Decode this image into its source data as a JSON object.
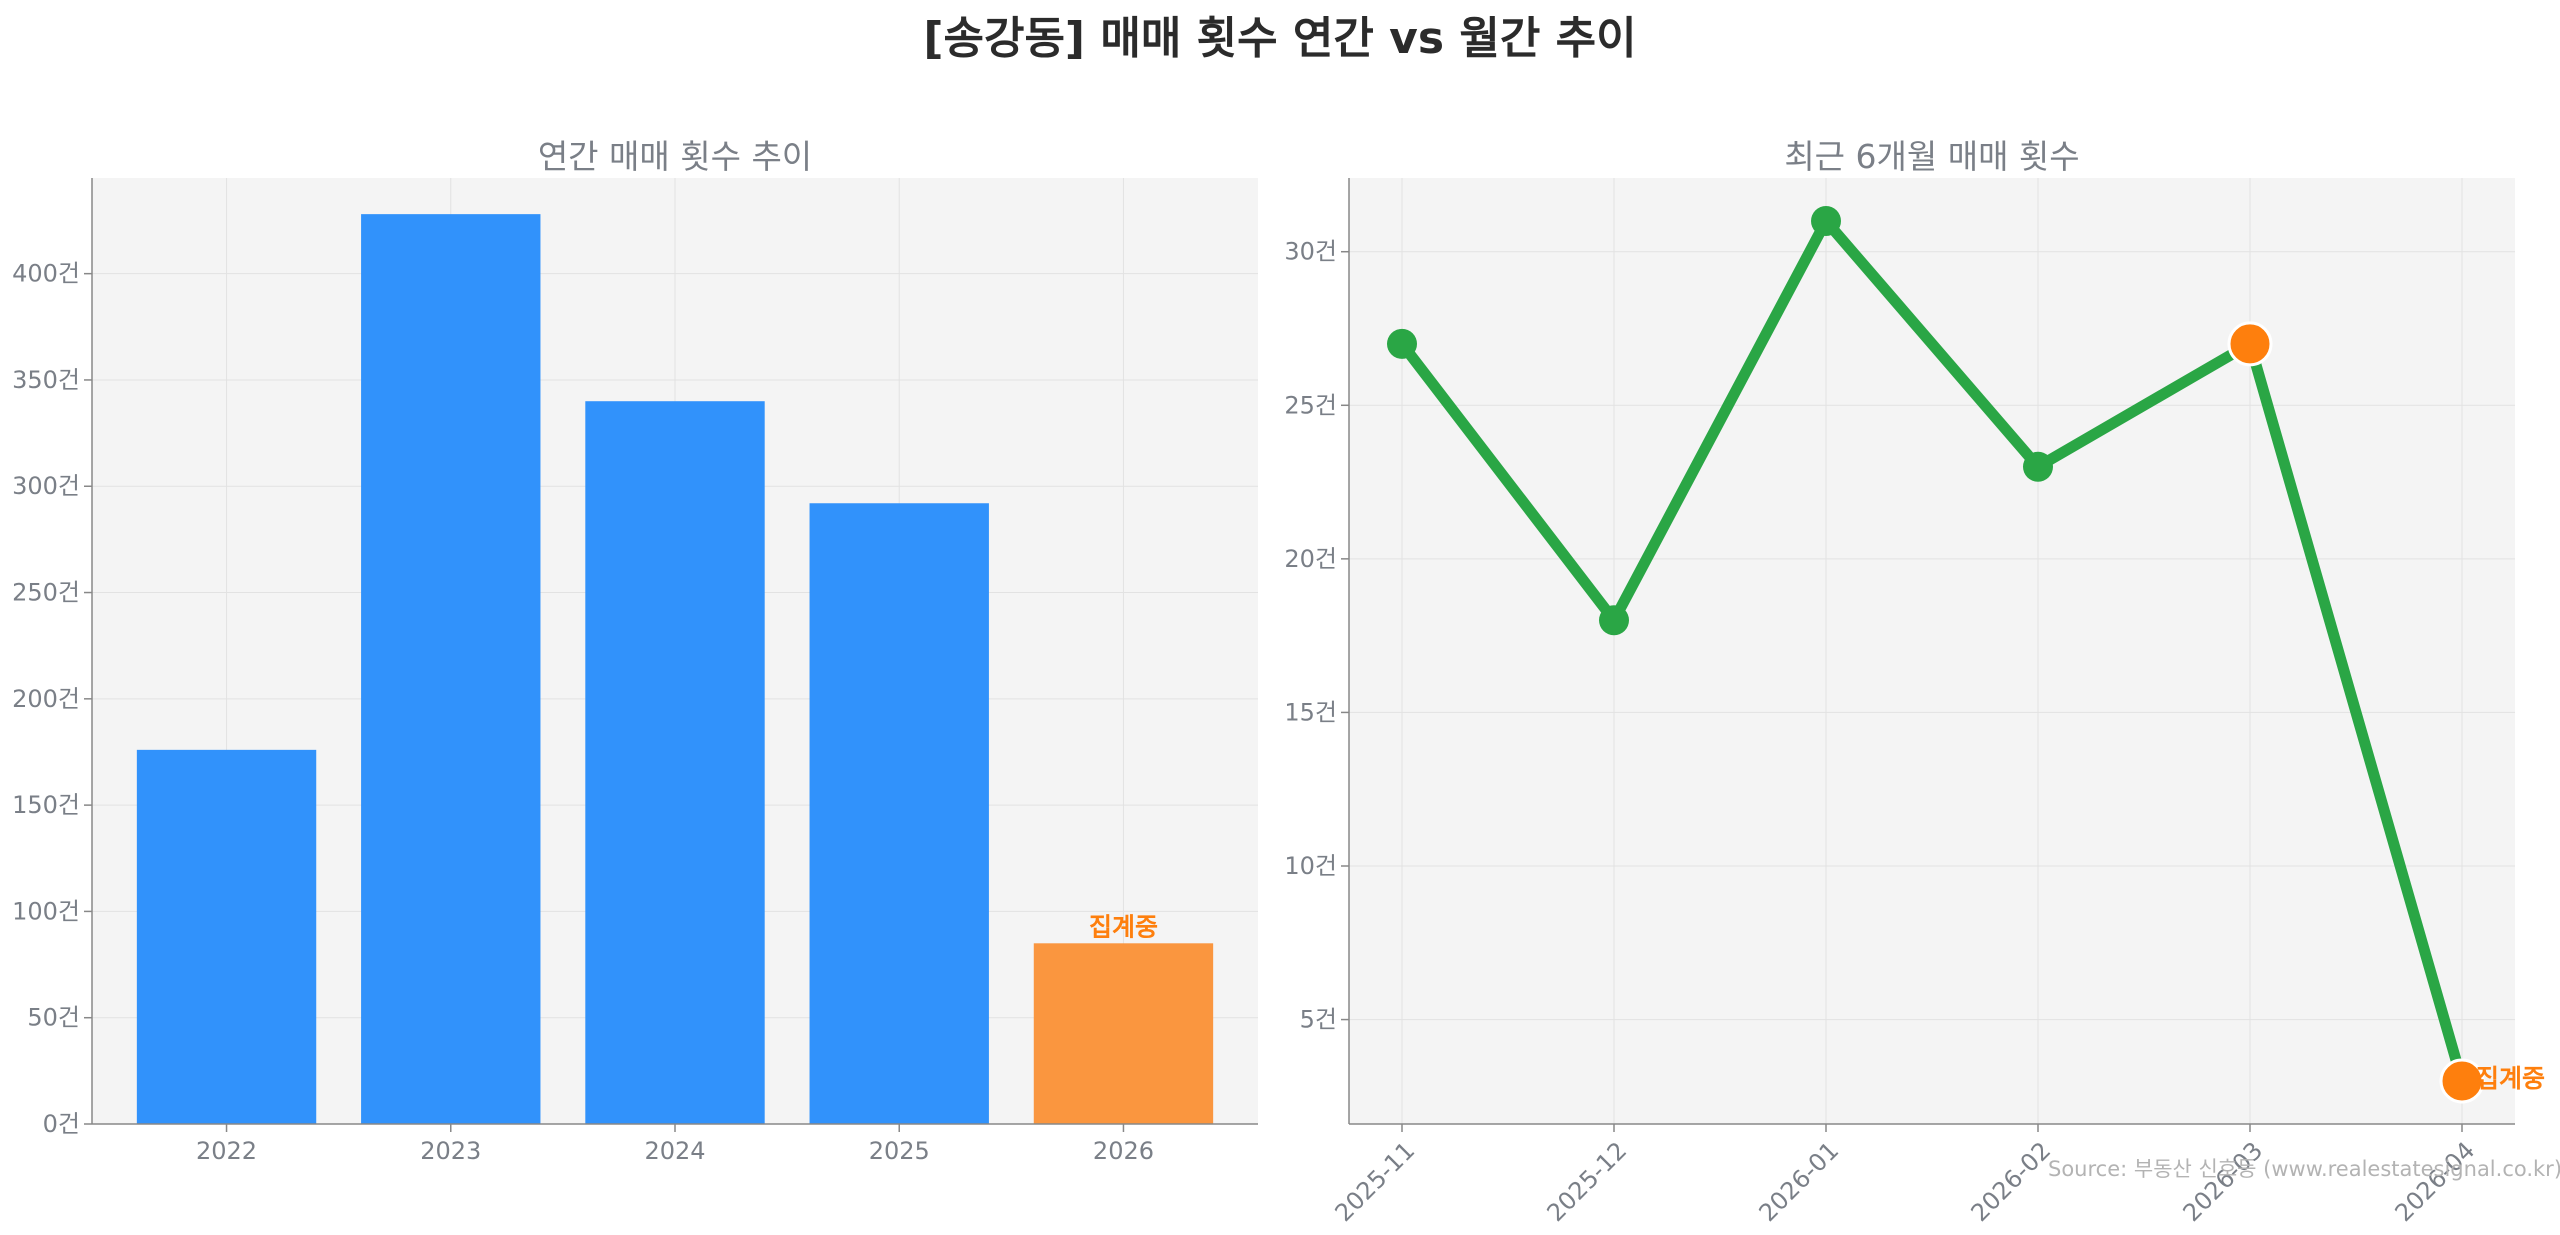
{
  "title": "[송강동] 매매 횟수 연간 vs 월간 추이",
  "source": "Source: 부동산 신호등 (www.realestatesignal.co.kr)",
  "colors": {
    "bar": "#3192fb",
    "highlight_bar": "#fa963f",
    "line": "#2aa645",
    "highlight_point": "#fe7f0d",
    "note_text": "#fe7f0d",
    "panel_bg": "#f4f4f4"
  },
  "chart_data": [
    {
      "type": "bar",
      "title": "연간 매매 횟수 추이",
      "categories": [
        "2022",
        "2023",
        "2024",
        "2025",
        "2026"
      ],
      "values": [
        176,
        428,
        340,
        292,
        85
      ],
      "highlight_index": 4,
      "annotation": "집계중",
      "ylim": [
        0,
        445
      ],
      "yticks": [
        0,
        50,
        100,
        150,
        200,
        250,
        300,
        350,
        400
      ],
      "ytick_labels": [
        "0건",
        "50건",
        "100건",
        "150건",
        "200건",
        "250건",
        "300건",
        "350건",
        "400건"
      ],
      "grid": true
    },
    {
      "type": "line",
      "title": "최근 6개월 매매 횟수",
      "categories": [
        "2025-11",
        "2025-12",
        "2026-01",
        "2026-02",
        "2026-03",
        "2026-04"
      ],
      "values": [
        27,
        18,
        31,
        23,
        27,
        3
      ],
      "highlight_indices": [
        4,
        5
      ],
      "annotation": "집계중",
      "ylim": [
        1.6,
        32.4
      ],
      "yticks": [
        5,
        10,
        15,
        20,
        25,
        30
      ],
      "ytick_labels": [
        "5건",
        "10건",
        "15건",
        "20건",
        "25건",
        "30건"
      ],
      "grid": true
    }
  ]
}
